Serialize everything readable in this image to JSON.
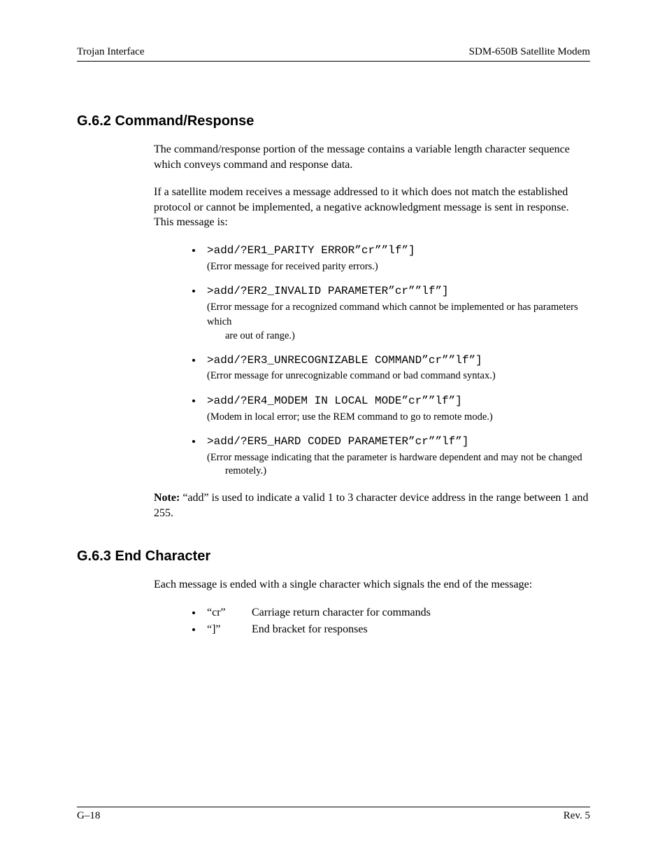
{
  "header": {
    "left": "Trojan Interface",
    "right": "SDM-650B Satellite Modem"
  },
  "sections": {
    "cmdresp": {
      "heading": "G.6.2  Command/Response",
      "para1": "The command/response portion of the message contains a variable length character sequence which conveys command and response data.",
      "para2": "If a satellite modem receives a message addressed to it which does not match the established protocol or cannot be implemented, a negative acknowledgment message is sent in response. This message is:",
      "errors": [
        {
          "code": ">add/?ER1_PARITY ERROR”cr””lf”]",
          "desc": "(Error message for received parity errors.)"
        },
        {
          "code": ">add/?ER2_INVALID PARAMETER”cr””lf”]",
          "desc": "(Error message for a recognized command which cannot be implemented or has parameters which",
          "desc_cont": "are out of range.)"
        },
        {
          "code": ">add/?ER3_UNRECOGNIZABLE COMMAND”cr””lf”]",
          "desc": "(Error message for unrecognizable command or bad command syntax.)"
        },
        {
          "code": ">add/?ER4_MODEM IN LOCAL MODE”cr””lf”]",
          "desc": "(Modem in local error; use the REM command to go to remote mode.)"
        },
        {
          "code": ">add/?ER5_HARD CODED PARAMETER”cr””lf”]",
          "desc": "(Error message indicating that the parameter is hardware dependent and may not be changed",
          "desc_cont": "remotely.)"
        }
      ],
      "note_label": "Note:",
      "note_text": " “add” is used to indicate a valid 1 to 3 character device address in the range between 1 and 255."
    },
    "endchar": {
      "heading": "G.6.3  End Character",
      "para1": "Each message is ended with a single character which signals the end of the message:",
      "items": [
        {
          "sym": "“cr”",
          "desc": "Carriage return character for commands"
        },
        {
          "sym": "“]”",
          "desc": "End bracket for responses"
        }
      ]
    }
  },
  "footer": {
    "left": "G–18",
    "right": "Rev. 5"
  }
}
